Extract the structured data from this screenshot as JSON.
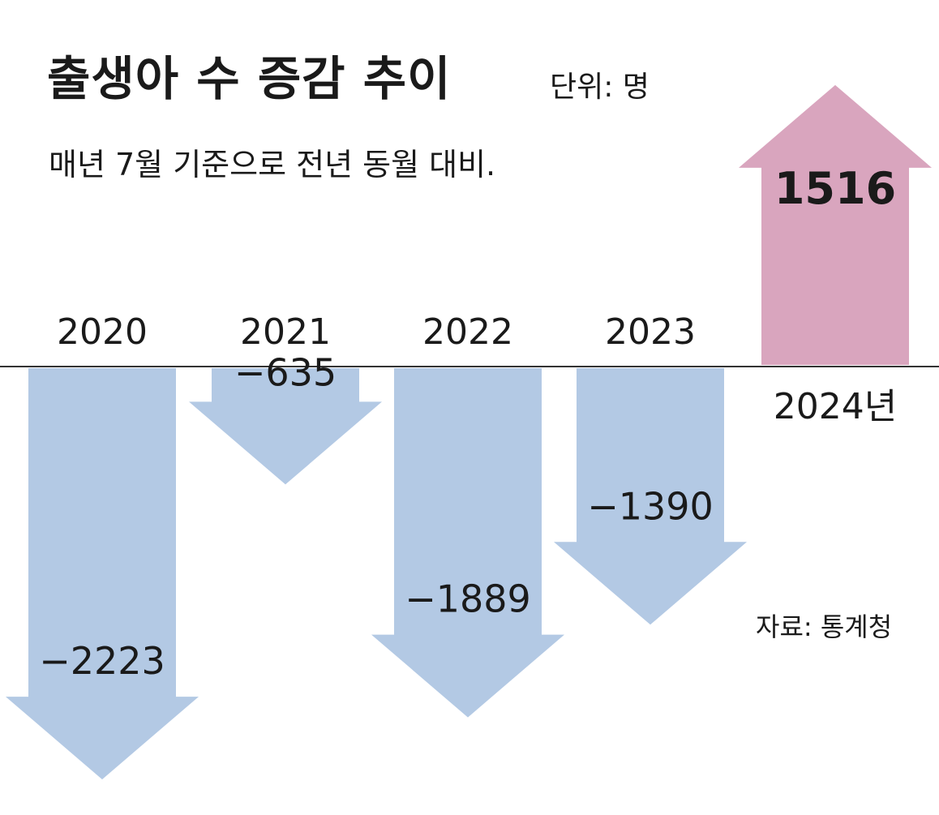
{
  "header": {
    "title": "출생아 수 증감 추이",
    "unit": "단위: 명",
    "subtitle": "매년 7월 기준으로 전년 동월 대비."
  },
  "source": "자료: 통계청",
  "colors": {
    "negative": "#b3c9e4",
    "positive": "#d9a5be",
    "axis": "#333333"
  },
  "chart_data": {
    "type": "bar",
    "title": "출생아 수 증감 추이",
    "subtitle": "매년 7월 기준으로 전년 동월 대비.",
    "unit": "명",
    "categories": [
      "2020",
      "2021",
      "2022",
      "2023",
      "2024년"
    ],
    "values": [
      -2223,
      -635,
      -1889,
      -1390,
      1516
    ],
    "value_labels": [
      "−2223",
      "−635",
      "−1889",
      "−1390",
      "1516"
    ],
    "xlabel": "",
    "ylabel": "",
    "ylim": [
      -2300,
      1600
    ],
    "grid": false,
    "legend": "none"
  }
}
